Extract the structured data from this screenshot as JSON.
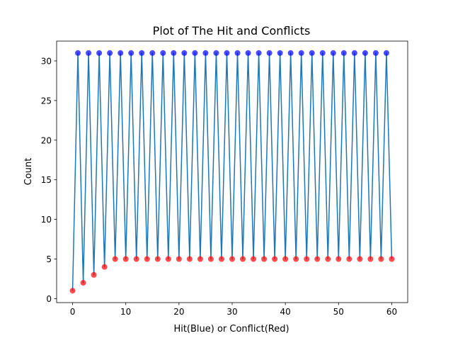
{
  "chart_data": {
    "type": "line",
    "title": "Plot of The Hit and Conflicts",
    "xlabel": "Hit(Blue) or Conflict(Red)",
    "ylabel": "Count",
    "xlim": [
      -3,
      63
    ],
    "ylim": [
      -0.5,
      32.5
    ],
    "xticks": [
      0,
      10,
      20,
      30,
      40,
      50,
      60
    ],
    "yticks": [
      0,
      5,
      10,
      15,
      20,
      25,
      30
    ],
    "grid": false,
    "line_color": "#1f77b4",
    "hit_color": "#0000ff",
    "conflict_color": "#ff0000",
    "x": [
      0,
      1,
      2,
      3,
      4,
      5,
      6,
      7,
      8,
      9,
      10,
      11,
      12,
      13,
      14,
      15,
      16,
      17,
      18,
      19,
      20,
      21,
      22,
      23,
      24,
      25,
      26,
      27,
      28,
      29,
      30,
      31,
      32,
      33,
      34,
      35,
      36,
      37,
      38,
      39,
      40,
      41,
      42,
      43,
      44,
      45,
      46,
      47,
      48,
      49,
      50,
      51,
      52,
      53,
      54,
      55,
      56,
      57,
      58,
      59,
      60
    ],
    "y": [
      1,
      31,
      2,
      31,
      3,
      31,
      4,
      31,
      5,
      31,
      5,
      31,
      5,
      31,
      5,
      31,
      5,
      31,
      5,
      31,
      5,
      31,
      5,
      31,
      5,
      31,
      5,
      31,
      5,
      31,
      5,
      31,
      5,
      31,
      5,
      31,
      5,
      31,
      5,
      31,
      5,
      31,
      5,
      31,
      5,
      31,
      5,
      31,
      5,
      31,
      5,
      31,
      5,
      31,
      5,
      31,
      5,
      31,
      5,
      31,
      5
    ],
    "point_types": [
      "conflict",
      "hit",
      "conflict",
      "hit",
      "conflict",
      "hit",
      "conflict",
      "hit",
      "conflict",
      "hit",
      "conflict",
      "hit",
      "conflict",
      "hit",
      "conflict",
      "hit",
      "conflict",
      "hit",
      "conflict",
      "hit",
      "conflict",
      "hit",
      "conflict",
      "hit",
      "conflict",
      "hit",
      "conflict",
      "hit",
      "conflict",
      "hit",
      "conflict",
      "hit",
      "conflict",
      "hit",
      "conflict",
      "hit",
      "conflict",
      "hit",
      "conflict",
      "hit",
      "conflict",
      "hit",
      "conflict",
      "hit",
      "conflict",
      "hit",
      "conflict",
      "hit",
      "conflict",
      "hit",
      "conflict",
      "hit",
      "conflict",
      "hit",
      "conflict",
      "hit",
      "conflict",
      "hit",
      "conflict",
      "hit",
      "conflict"
    ]
  }
}
